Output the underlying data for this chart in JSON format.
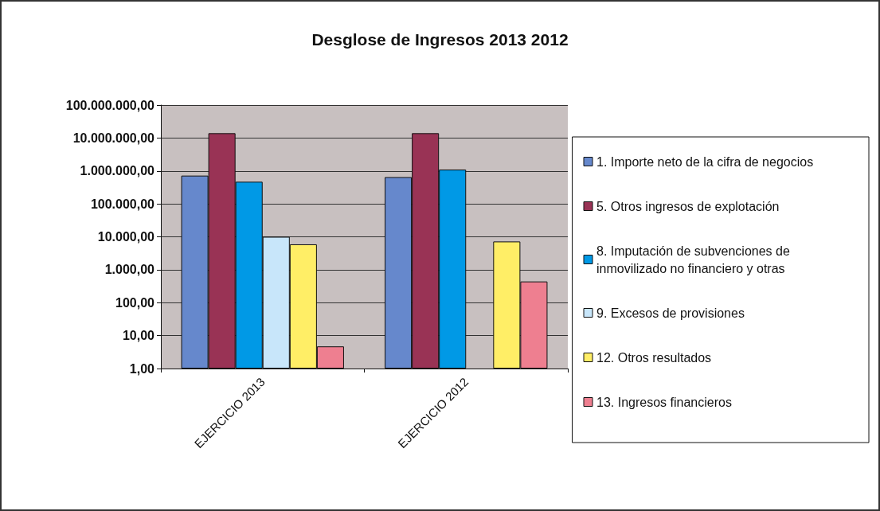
{
  "chart_data": {
    "type": "bar",
    "title": "Desglose de Ingresos 2013 2012",
    "categories": [
      "EJERCICIO 2013",
      "EJERCICIO 2012"
    ],
    "series": [
      {
        "name": "1. Importe neto de la cifra de negocios",
        "color": "#6688cc",
        "values": [
          720000,
          650000
        ]
      },
      {
        "name": "5. Otros ingresos de explotación",
        "color": "#993355",
        "values": [
          14000000,
          14000000
        ]
      },
      {
        "name": "8. Imputación de subvenciones de inmovilizado no financiero y otras",
        "color": "#0099e6",
        "values": [
          470000,
          1100000
        ]
      },
      {
        "name": "9. Excesos de provisiones",
        "color": "#c8e6fa",
        "values": [
          10000,
          null
        ]
      },
      {
        "name": "12. Otros resultados",
        "color": "#ffee66",
        "values": [
          5900,
          7200
        ]
      },
      {
        "name": "13. Ingresos financieros",
        "color": "#ee7f90",
        "values": [
          4.7,
          440
        ]
      }
    ],
    "log": "y",
    "ylim": [
      1,
      100000000
    ],
    "yticks": [
      {
        "value": 1,
        "label": "1,00"
      },
      {
        "value": 10,
        "label": "10,00"
      },
      {
        "value": 100,
        "label": "100,00"
      },
      {
        "value": 1000,
        "label": "1.000,00"
      },
      {
        "value": 10000,
        "label": "10.000,00"
      },
      {
        "value": 100000,
        "label": "100.000,00"
      },
      {
        "value": 1000000,
        "label": "1.000.000,00"
      },
      {
        "value": 10000000,
        "label": "10.000.000,00"
      },
      {
        "value": 100000000,
        "label": "100.000.000,00"
      }
    ],
    "grid": "y",
    "legend": "right"
  }
}
